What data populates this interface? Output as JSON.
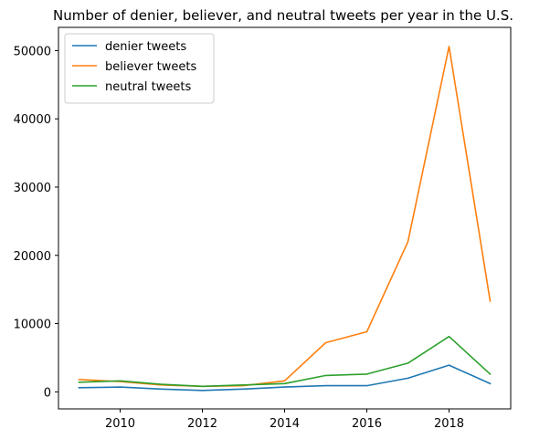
{
  "chart_data": {
    "type": "line",
    "title": "Number of denier, believer, and neutral tweets per year in the U.S.",
    "xlabel": "",
    "ylabel": "",
    "x": [
      2009,
      2010,
      2011,
      2012,
      2013,
      2014,
      2015,
      2016,
      2017,
      2018,
      2019
    ],
    "xlim": [
      2008.5,
      2019.5
    ],
    "ylim": [
      -2500,
      53400
    ],
    "xticks": [
      2010,
      2012,
      2014,
      2016,
      2018
    ],
    "yticks": [
      0,
      10000,
      20000,
      30000,
      40000,
      50000
    ],
    "grid": false,
    "legend_position": "top-left",
    "series": [
      {
        "name": "denier tweets",
        "color": "#1f77b4",
        "values": [
          600,
          700,
          400,
          200,
          400,
          700,
          900,
          900,
          2000,
          3900,
          1200
        ]
      },
      {
        "name": "believer tweets",
        "color": "#ff7f0e",
        "values": [
          1800,
          1500,
          1000,
          800,
          900,
          1600,
          7200,
          8800,
          22000,
          50600,
          13300
        ]
      },
      {
        "name": "neutral tweets",
        "color": "#2ca02c",
        "values": [
          1400,
          1600,
          1100,
          800,
          1000,
          1200,
          2400,
          2600,
          4200,
          8100,
          2600
        ]
      }
    ]
  }
}
